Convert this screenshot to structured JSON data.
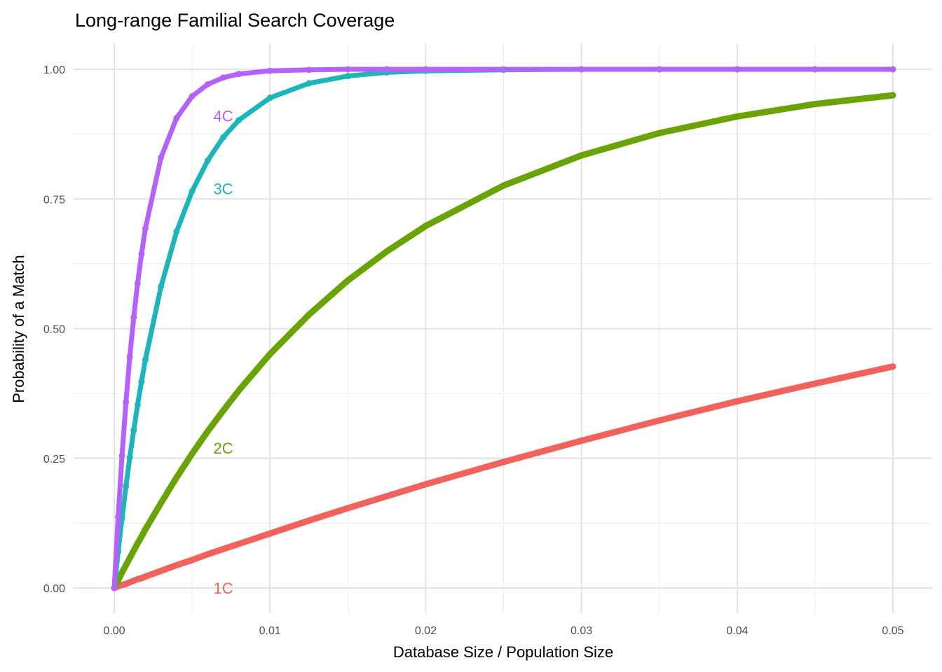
{
  "chart_data": {
    "type": "line",
    "title": "Long-range Familial Search Coverage",
    "xlabel": "Database Size / Population Size",
    "ylabel": "Probability of a Match",
    "xlim": [
      0,
      0.05
    ],
    "ylim": [
      0,
      1
    ],
    "x_ticks": [
      0,
      0.01,
      0.02,
      0.03,
      0.04,
      0.05
    ],
    "x_tick_labels": [
      "0.00",
      "0.01",
      "0.02",
      "0.03",
      "0.04",
      "0.05"
    ],
    "y_ticks": [
      0,
      0.25,
      0.5,
      0.75,
      1
    ],
    "y_tick_labels": [
      "0.00",
      "0.25",
      "0.50",
      "0.75",
      "1.00"
    ],
    "grid": true,
    "legend": "none",
    "x": [
      0,
      0.00025,
      0.0005,
      0.00075,
      0.001,
      0.00125,
      0.0015,
      0.00175,
      0.002,
      0.003,
      0.004,
      0.005,
      0.006,
      0.007,
      0.008,
      0.01,
      0.0125,
      0.015,
      0.0175,
      0.02,
      0.025,
      0.03,
      0.035,
      0.04,
      0.045,
      0.05
    ],
    "series": [
      {
        "name": "1C",
        "color": "#F2625C",
        "values": [
          0,
          0.003,
          0.006,
          0.008,
          0.011,
          0.014,
          0.017,
          0.019,
          0.022,
          0.033,
          0.044,
          0.054,
          0.065,
          0.075,
          0.085,
          0.105,
          0.13,
          0.154,
          0.177,
          0.2,
          0.243,
          0.284,
          0.323,
          0.36,
          0.394,
          0.427
        ]
      },
      {
        "name": "2C",
        "color": "#6AA404",
        "values": [
          0,
          0.015,
          0.03,
          0.044,
          0.058,
          0.072,
          0.086,
          0.099,
          0.113,
          0.164,
          0.213,
          0.259,
          0.302,
          0.342,
          0.381,
          0.451,
          0.527,
          0.593,
          0.649,
          0.698,
          0.776,
          0.834,
          0.877,
          0.909,
          0.933,
          0.95
        ]
      },
      {
        "name": "3C",
        "color": "#1CB6BA",
        "values": [
          0,
          0.07,
          0.135,
          0.196,
          0.252,
          0.304,
          0.353,
          0.398,
          0.44,
          0.581,
          0.687,
          0.765,
          0.824,
          0.869,
          0.902,
          0.945,
          0.973,
          0.987,
          0.994,
          0.997,
          0.999,
          1,
          1,
          1,
          1,
          1
        ]
      },
      {
        "name": "4C",
        "color": "#B462FB",
        "values": [
          0,
          0.137,
          0.255,
          0.358,
          0.446,
          0.522,
          0.587,
          0.644,
          0.693,
          0.83,
          0.906,
          0.948,
          0.971,
          0.984,
          0.991,
          0.997,
          0.999,
          1,
          1,
          1,
          1,
          1,
          1,
          1,
          1,
          1
        ]
      }
    ],
    "annotations": [
      {
        "text": "1C",
        "x": 0.007,
        "y": 0.0,
        "color": "#F2625C"
      },
      {
        "text": "2C",
        "x": 0.007,
        "y": 0.27,
        "color": "#6AA404"
      },
      {
        "text": "3C",
        "x": 0.007,
        "y": 0.77,
        "color": "#1CB6BA"
      },
      {
        "text": "4C",
        "x": 0.007,
        "y": 0.91,
        "color": "#B462FB"
      }
    ]
  }
}
